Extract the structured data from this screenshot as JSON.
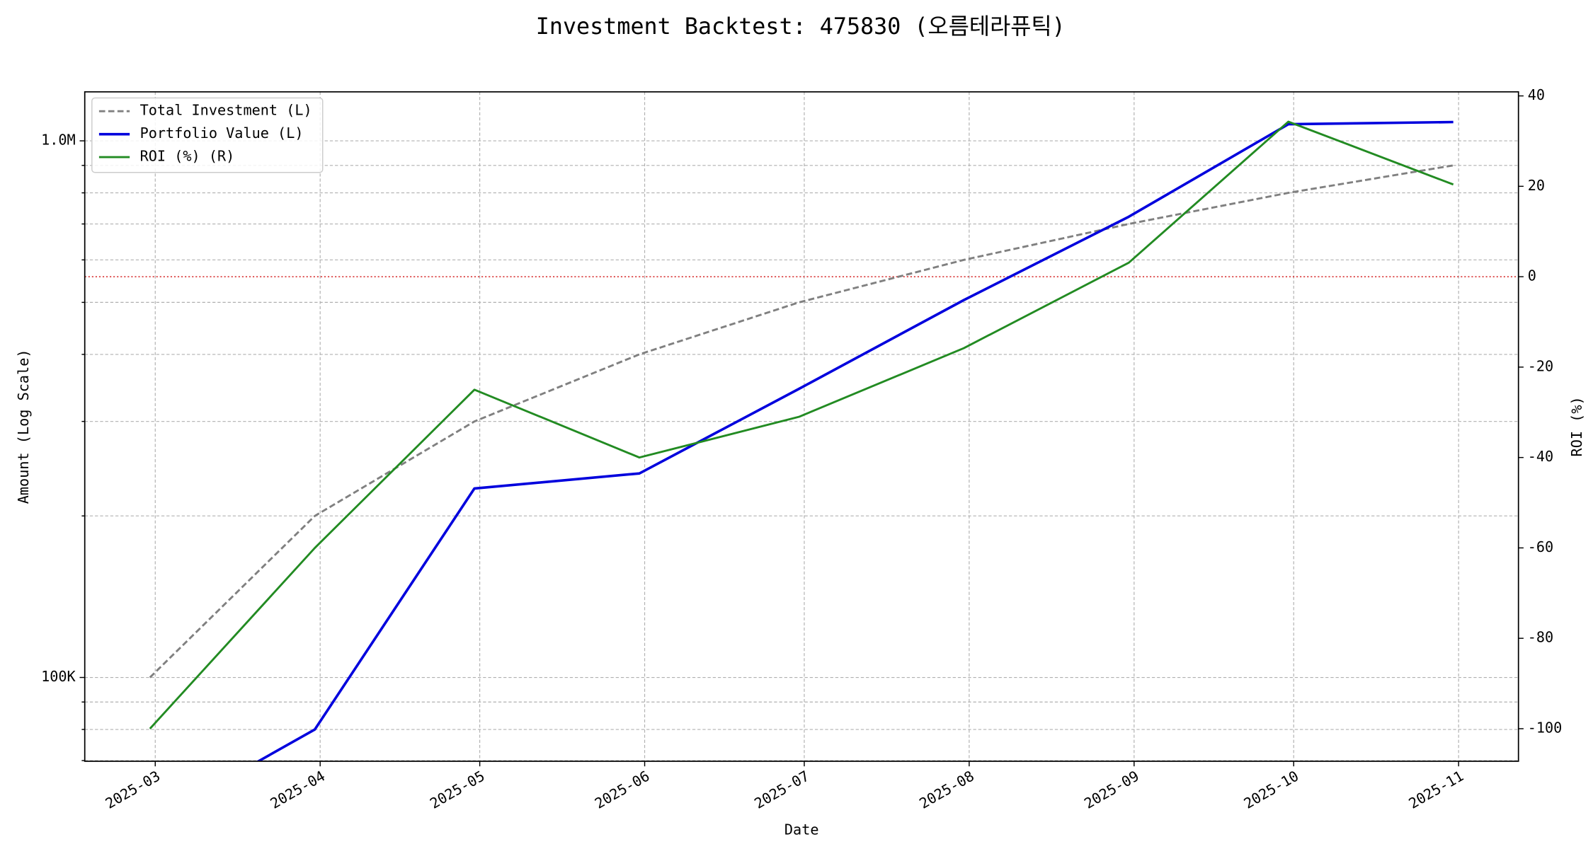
{
  "chart_data": {
    "type": "line",
    "title": "Investment Backtest: 475830 (오름테라퓨틱)",
    "xlabel": "Date",
    "ylabel": "Amount (Log Scale)",
    "y2label": "ROI (%)",
    "ylabel_color": "#0000dd",
    "y2label_color": "#228b22",
    "log_y": true,
    "grid": true,
    "legend": "upper left",
    "x": [
      "2025-02",
      "2025-03",
      "2025-04",
      "2025-05",
      "2025-06",
      "2025-07",
      "2025-08",
      "2025-09",
      "2025-10"
    ],
    "xticks": [
      "2025-03",
      "2025-04",
      "2025-05",
      "2025-06",
      "2025-07",
      "2025-08",
      "2025-09",
      "2025-10",
      "2025-11"
    ],
    "ylim": [
      69800,
      1234000
    ],
    "yticks": [
      {
        "value": 100000,
        "label": "100K"
      },
      {
        "value": 1000000,
        "label": "1.0M"
      }
    ],
    "yminor": [
      70000,
      80000,
      90000,
      200000,
      300000,
      400000,
      500000,
      600000,
      700000,
      800000,
      900000
    ],
    "y2lim": [
      -107.2,
      40.9
    ],
    "y2ticks": [
      -100,
      -80,
      -60,
      -40,
      -20,
      0,
      20,
      40
    ],
    "y2_refline": {
      "value": 0,
      "color": "#d62728"
    },
    "series": [
      {
        "name": "Total Investment (L)",
        "color": "#808080",
        "style": "dashed",
        "axis": "y",
        "values": [
          100000,
          200000,
          300000,
          400000,
          500000,
          600000,
          700000,
          800000,
          900000
        ]
      },
      {
        "name": "Portfolio Value (L)",
        "color": "#0000dd",
        "style": "solid",
        "axis": "y",
        "values": [
          0,
          80000,
          225000,
          240000,
          345000,
          505000,
          722000,
          1074000,
          1084000
        ]
      },
      {
        "name": "ROI (%) (R)",
        "color": "#228b22",
        "style": "solid",
        "axis": "y2",
        "values": [
          -100,
          -60,
          -25,
          -40,
          -31,
          -15.8,
          3.1,
          34.3,
          20.4
        ]
      }
    ]
  }
}
